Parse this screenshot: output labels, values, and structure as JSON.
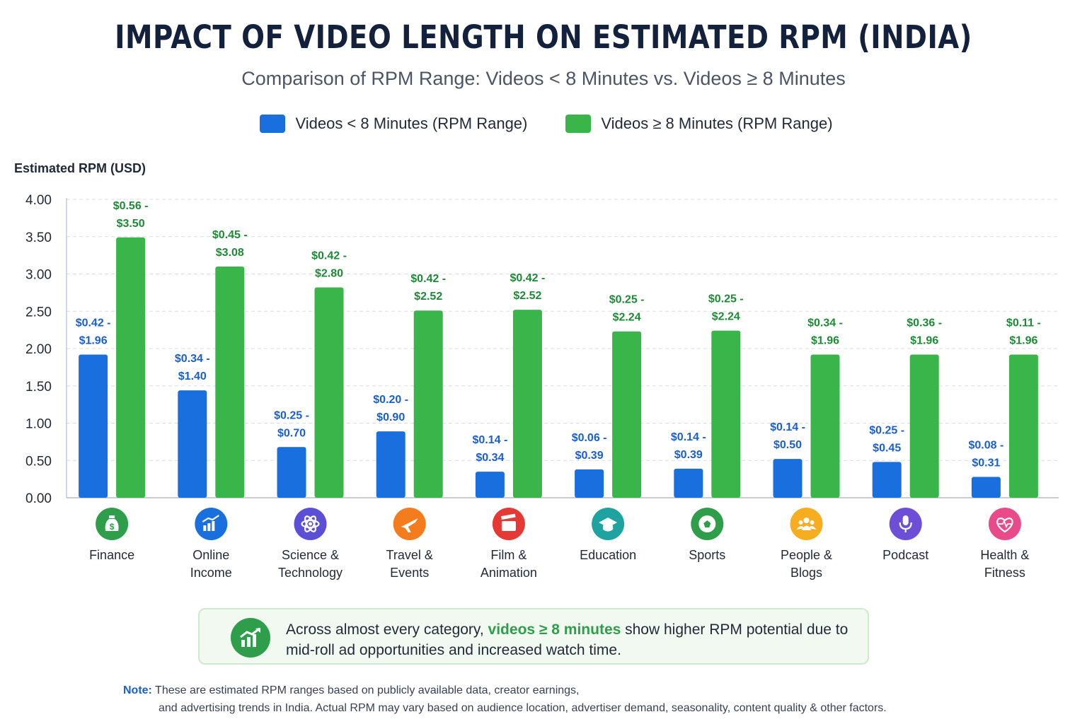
{
  "title": "IMPACT OF VIDEO LENGTH ON ESTIMATED RPM (INDIA)",
  "subtitle": "Comparison of RPM Range: Videos < 8 Minutes vs. Videos ≥ 8 Minutes",
  "legend": [
    {
      "label": "Videos < 8 Minutes (RPM Range)",
      "color": "#1a6fdf"
    },
    {
      "label": "Videos ≥ 8 Minutes (RPM Range)",
      "color": "#3ab54a"
    }
  ],
  "chart_data": {
    "type": "bar",
    "ylabel": "Estimated RPM (USD)",
    "ylim": [
      0,
      4
    ],
    "yticks": [
      "0.00",
      "0.50",
      "1.00",
      "1.50",
      "2.00",
      "2.50",
      "3.00",
      "3.50",
      "4.00"
    ],
    "grid": true,
    "categories": [
      {
        "lines": [
          "Finance"
        ],
        "icon": "money-bag-icon",
        "icon_color": "#2e9e4a"
      },
      {
        "lines": [
          "Online",
          "Income"
        ],
        "icon": "growth-chart-icon",
        "icon_color": "#1a6fdf"
      },
      {
        "lines": [
          "Science &",
          "Technology"
        ],
        "icon": "atom-icon",
        "icon_color": "#5b4fd6"
      },
      {
        "lines": [
          "Travel &",
          "Events"
        ],
        "icon": "airplane-icon",
        "icon_color": "#f47c1c"
      },
      {
        "lines": [
          "Film &",
          "Animation"
        ],
        "icon": "film-clapper-icon",
        "icon_color": "#e53935"
      },
      {
        "lines": [
          "Education"
        ],
        "icon": "graduation-cap-icon",
        "icon_color": "#1fa3a0"
      },
      {
        "lines": [
          "Sports"
        ],
        "icon": "soccer-ball-icon",
        "icon_color": "#2e9e4a"
      },
      {
        "lines": [
          "People &",
          "Blogs"
        ],
        "icon": "people-icon",
        "icon_color": "#f6ad1f"
      },
      {
        "lines": [
          "Podcast"
        ],
        "icon": "microphone-icon",
        "icon_color": "#6c4fd6"
      },
      {
        "lines": [
          "Health &",
          "Fitness"
        ],
        "icon": "heart-pulse-icon",
        "icon_color": "#e84a8a"
      }
    ],
    "series": [
      {
        "name": "Videos < 8 Minutes (RPM Range)",
        "color": "#1a6fdf",
        "label_color": "#1a5fd0",
        "values": [
          1.92,
          1.44,
          0.68,
          0.89,
          0.35,
          0.38,
          0.39,
          0.52,
          0.48,
          0.28
        ],
        "range_labels": [
          [
            "$0.42 -",
            "$1.96"
          ],
          [
            "$0.34 -",
            "$1.40"
          ],
          [
            "$0.25 -",
            "$0.70"
          ],
          [
            "$0.20 -",
            "$0.90"
          ],
          [
            "$0.14 -",
            "$0.34"
          ],
          [
            "$0.06 -",
            "$0.39"
          ],
          [
            "$0.14 -",
            "$0.39"
          ],
          [
            "$0.14 -",
            "$0.50"
          ],
          [
            "$0.25 -",
            "$0.45"
          ],
          [
            "$0.08 -",
            "$0.31"
          ]
        ]
      },
      {
        "name": "Videos ≥ 8 Minutes (RPM Range)",
        "color": "#3ab54a",
        "label_color": "#1e8a36",
        "values": [
          3.49,
          3.1,
          2.82,
          2.51,
          2.52,
          2.23,
          2.24,
          1.92,
          1.92,
          1.92
        ],
        "range_labels": [
          [
            "$0.56 -",
            "$3.50"
          ],
          [
            "$0.45 -",
            "$3.08"
          ],
          [
            "$0.42 -",
            "$2.80"
          ],
          [
            "$0.42 -",
            "$2.52"
          ],
          [
            "$0.42 -",
            "$2.52"
          ],
          [
            "$0.25 -",
            "$2.24"
          ],
          [
            "$0.25 -",
            "$2.24"
          ],
          [
            "$0.34 -",
            "$1.96"
          ],
          [
            "$0.36 -",
            "$1.96"
          ],
          [
            "$0.11 -",
            "$1.96"
          ]
        ]
      }
    ]
  },
  "insight": {
    "icon": "growth-chart-icon",
    "text_before": "Across almost every category, ",
    "highlight": "videos ≥ 8 minutes",
    "text_after": " show higher RPM potential due to mid-roll ad opportunities and increased watch time."
  },
  "note": {
    "label": "Note:",
    "line1": "These are estimated RPM ranges based on publicly available data, creator earnings,",
    "line2": "and advertising trends in India. Actual RPM may vary based on audience location, advertiser demand, seasonality, content quality & other factors."
  }
}
